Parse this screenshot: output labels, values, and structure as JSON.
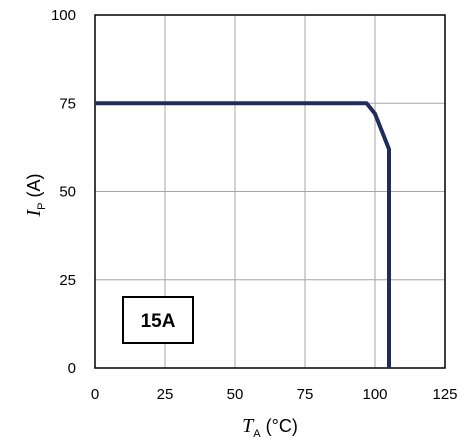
{
  "chart_data": {
    "type": "line",
    "x": [
      0,
      25,
      50,
      75,
      97,
      100,
      105,
      105,
      105
    ],
    "series": [
      {
        "name": "",
        "color": "#1f2d5c",
        "values": [
          75,
          75,
          75,
          75,
          75,
          72,
          62,
          62,
          0
        ]
      }
    ],
    "xlim": [
      0,
      125
    ],
    "ylim": [
      0,
      100
    ],
    "xticks": [
      "0",
      "25",
      "50",
      "75",
      "100",
      "125"
    ],
    "yticks": [
      "0",
      "25",
      "50",
      "75",
      "100"
    ],
    "xlabel": {
      "symbol": "T",
      "subscript": "A",
      "unit": " (°C)"
    },
    "ylabel": {
      "symbol": "I",
      "subscript": "P",
      "unit": " (A)"
    },
    "grid": true,
    "annotation": "15A"
  }
}
